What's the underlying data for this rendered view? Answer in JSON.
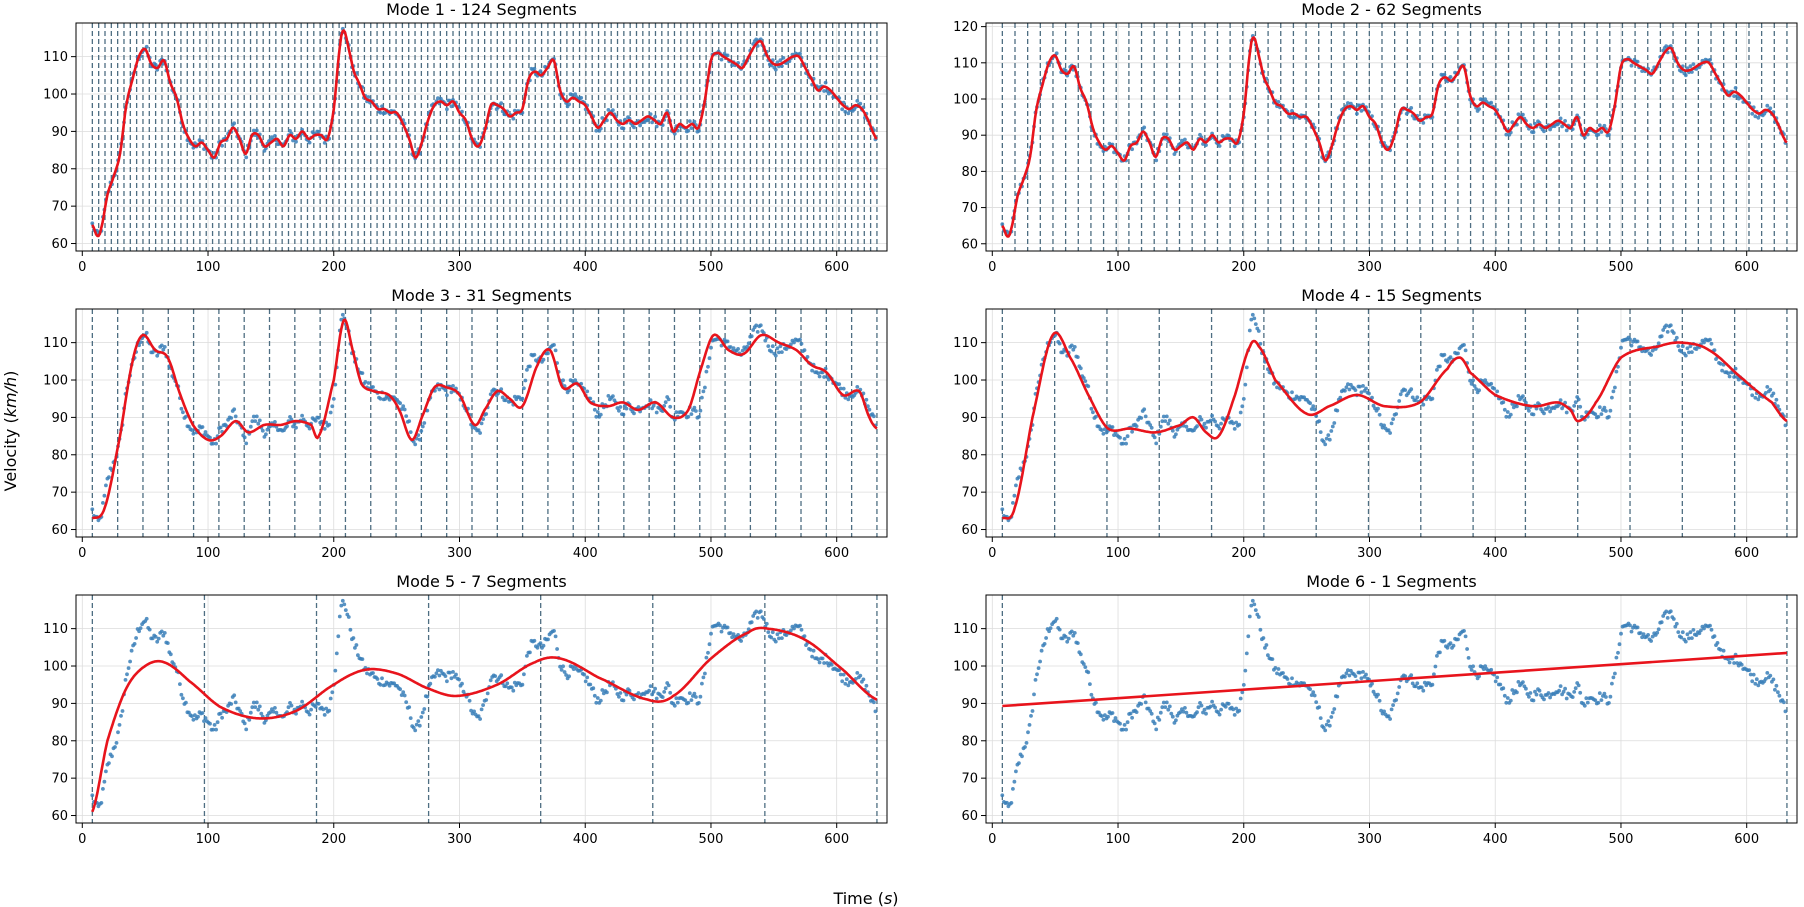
{
  "figure": {
    "xlabel_text": "Time (",
    "xlabel_unit": "s",
    "xlabel_close": ")",
    "ylabel_text": "Velocity (",
    "ylabel_unit": "km/h",
    "ylabel_close": ")"
  },
  "colors": {
    "scatter": "#3a7fb8",
    "fit": "#e8141c",
    "boundary": "#4e6e82",
    "grid": "#dcdcdc"
  },
  "chart_data": [
    {
      "type": "line",
      "title": "Mode 1 - 124 Segments",
      "segments": 124,
      "xlim": [
        -5,
        640
      ],
      "ylim": [
        58,
        119
      ],
      "xticks": [
        0,
        100,
        200,
        300,
        400,
        500,
        600
      ],
      "yticks": [
        60,
        70,
        80,
        90,
        100,
        110
      ],
      "fit": "full",
      "fit_points": []
    },
    {
      "type": "line",
      "title": "Mode 2 - 62 Segments",
      "segments": 62,
      "xlim": [
        -5,
        640
      ],
      "ylim": [
        58,
        121
      ],
      "xticks": [
        0,
        100,
        200,
        300,
        400,
        500,
        600
      ],
      "yticks": [
        60,
        70,
        80,
        90,
        100,
        110,
        120
      ],
      "fit": "full",
      "fit_points": []
    },
    {
      "type": "line",
      "title": "Mode 3 - 31 Segments",
      "segments": 31,
      "xlim": [
        -5,
        640
      ],
      "ylim": [
        58,
        119
      ],
      "xticks": [
        0,
        100,
        200,
        300,
        400,
        500,
        600
      ],
      "yticks": [
        60,
        70,
        80,
        90,
        100,
        110
      ],
      "fit": "smooth",
      "fit_points": [
        [
          8,
          63
        ],
        [
          18,
          66
        ],
        [
          30,
          85
        ],
        [
          40,
          105
        ],
        [
          48,
          112
        ],
        [
          58,
          108
        ],
        [
          68,
          106
        ],
        [
          78,
          96
        ],
        [
          88,
          88
        ],
        [
          100,
          84
        ],
        [
          110,
          85
        ],
        [
          122,
          89
        ],
        [
          132,
          86
        ],
        [
          145,
          88
        ],
        [
          158,
          88
        ],
        [
          170,
          89
        ],
        [
          182,
          88
        ],
        [
          188,
          85
        ],
        [
          200,
          100
        ],
        [
          208,
          116
        ],
        [
          215,
          108
        ],
        [
          222,
          99
        ],
        [
          232,
          97
        ],
        [
          244,
          96
        ],
        [
          252,
          92
        ],
        [
          262,
          84
        ],
        [
          270,
          90
        ],
        [
          280,
          98
        ],
        [
          290,
          98
        ],
        [
          300,
          96
        ],
        [
          312,
          88
        ],
        [
          320,
          92
        ],
        [
          330,
          97
        ],
        [
          340,
          95
        ],
        [
          350,
          93
        ],
        [
          362,
          104
        ],
        [
          372,
          108
        ],
        [
          382,
          98
        ],
        [
          394,
          99
        ],
        [
          404,
          94
        ],
        [
          418,
          93
        ],
        [
          430,
          94
        ],
        [
          442,
          92
        ],
        [
          456,
          94
        ],
        [
          470,
          90
        ],
        [
          482,
          92
        ],
        [
          492,
          103
        ],
        [
          502,
          112
        ],
        [
          514,
          108
        ],
        [
          526,
          107
        ],
        [
          540,
          112
        ],
        [
          554,
          110
        ],
        [
          568,
          108
        ],
        [
          580,
          104
        ],
        [
          592,
          102
        ],
        [
          605,
          96
        ],
        [
          618,
          97
        ],
        [
          626,
          90
        ],
        [
          632,
          87
        ]
      ]
    },
    {
      "type": "line",
      "title": "Mode 4 - 15 Segments",
      "segments": 15,
      "xlim": [
        -5,
        640
      ],
      "ylim": [
        58,
        119
      ],
      "xticks": [
        0,
        100,
        200,
        300,
        400,
        500,
        600
      ],
      "yticks": [
        60,
        70,
        80,
        90,
        100,
        110
      ],
      "fit": "smooth",
      "fit_points": [
        [
          8,
          63
        ],
        [
          18,
          66
        ],
        [
          32,
          90
        ],
        [
          48,
          112
        ],
        [
          62,
          106
        ],
        [
          78,
          95
        ],
        [
          92,
          87
        ],
        [
          110,
          87
        ],
        [
          130,
          86
        ],
        [
          150,
          88
        ],
        [
          160,
          90
        ],
        [
          170,
          86
        ],
        [
          180,
          85
        ],
        [
          192,
          95
        ],
        [
          205,
          109
        ],
        [
          212,
          109
        ],
        [
          225,
          100
        ],
        [
          250,
          91
        ],
        [
          268,
          93
        ],
        [
          290,
          96
        ],
        [
          312,
          93
        ],
        [
          340,
          94
        ],
        [
          362,
          103
        ],
        [
          372,
          106
        ],
        [
          380,
          102
        ],
        [
          400,
          96
        ],
        [
          430,
          93
        ],
        [
          450,
          94
        ],
        [
          460,
          92
        ],
        [
          466,
          89
        ],
        [
          480,
          94
        ],
        [
          500,
          106
        ],
        [
          530,
          109
        ],
        [
          548,
          110
        ],
        [
          570,
          108
        ],
        [
          598,
          100
        ],
        [
          620,
          94
        ],
        [
          632,
          89
        ]
      ]
    },
    {
      "type": "line",
      "title": "Mode 5 - 7 Segments",
      "segments": 7,
      "xlim": [
        -5,
        640
      ],
      "ylim": [
        58,
        119
      ],
      "xticks": [
        0,
        100,
        200,
        300,
        400,
        500,
        600
      ],
      "yticks": [
        60,
        70,
        80,
        90,
        100,
        110
      ],
      "fit": "smooth",
      "fit_points": [
        [
          8,
          61
        ],
        [
          20,
          80
        ],
        [
          35,
          94
        ],
        [
          50,
          100
        ],
        [
          65,
          101
        ],
        [
          85,
          96
        ],
        [
          110,
          89
        ],
        [
          140,
          86
        ],
        [
          170,
          88
        ],
        [
          200,
          95
        ],
        [
          225,
          99
        ],
        [
          250,
          98
        ],
        [
          275,
          94
        ],
        [
          298,
          92
        ],
        [
          330,
          95
        ],
        [
          360,
          101
        ],
        [
          380,
          102
        ],
        [
          410,
          97
        ],
        [
          450,
          91
        ],
        [
          470,
          92
        ],
        [
          500,
          102
        ],
        [
          530,
          109
        ],
        [
          545,
          110
        ],
        [
          575,
          107
        ],
        [
          605,
          99
        ],
        [
          632,
          91
        ]
      ]
    },
    {
      "type": "line",
      "title": "Mode 6 - 1 Segments",
      "segments": 1,
      "xlim": [
        -5,
        640
      ],
      "ylim": [
        58,
        119
      ],
      "xticks": [
        0,
        100,
        200,
        300,
        400,
        500,
        600
      ],
      "yticks": [
        60,
        70,
        80,
        90,
        100,
        110
      ],
      "fit": "linear",
      "fit_points": [
        [
          8,
          89.3
        ],
        [
          632,
          103.5
        ]
      ]
    }
  ],
  "observed_speed_profile": {
    "x_range": [
      8,
      632
    ],
    "control_points": [
      [
        8,
        65
      ],
      [
        12,
        62
      ],
      [
        15,
        64
      ],
      [
        20,
        73
      ],
      [
        25,
        78
      ],
      [
        30,
        84
      ],
      [
        35,
        97
      ],
      [
        40,
        104
      ],
      [
        45,
        110
      ],
      [
        50,
        112
      ],
      [
        55,
        108
      ],
      [
        60,
        107
      ],
      [
        65,
        109
      ],
      [
        70,
        103
      ],
      [
        75,
        99
      ],
      [
        80,
        92
      ],
      [
        85,
        88
      ],
      [
        90,
        86
      ],
      [
        95,
        87
      ],
      [
        100,
        85
      ],
      [
        105,
        83
      ],
      [
        110,
        87
      ],
      [
        115,
        88
      ],
      [
        120,
        91
      ],
      [
        125,
        88
      ],
      [
        130,
        84
      ],
      [
        135,
        89
      ],
      [
        140,
        89
      ],
      [
        145,
        86
      ],
      [
        150,
        87
      ],
      [
        155,
        88
      ],
      [
        160,
        86
      ],
      [
        165,
        89
      ],
      [
        170,
        88
      ],
      [
        175,
        90
      ],
      [
        180,
        88
      ],
      [
        185,
        89
      ],
      [
        190,
        89
      ],
      [
        195,
        88
      ],
      [
        200,
        96
      ],
      [
        205,
        113
      ],
      [
        208,
        117
      ],
      [
        212,
        112
      ],
      [
        216,
        106
      ],
      [
        220,
        103
      ],
      [
        225,
        99
      ],
      [
        230,
        98
      ],
      [
        235,
        96
      ],
      [
        240,
        96
      ],
      [
        245,
        95
      ],
      [
        250,
        95
      ],
      [
        255,
        92
      ],
      [
        260,
        88
      ],
      [
        265,
        83
      ],
      [
        270,
        87
      ],
      [
        275,
        93
      ],
      [
        280,
        97
      ],
      [
        285,
        98
      ],
      [
        290,
        97
      ],
      [
        295,
        98
      ],
      [
        300,
        95
      ],
      [
        305,
        93
      ],
      [
        310,
        88
      ],
      [
        315,
        86
      ],
      [
        320,
        90
      ],
      [
        325,
        97
      ],
      [
        330,
        97
      ],
      [
        335,
        96
      ],
      [
        340,
        94
      ],
      [
        345,
        95
      ],
      [
        350,
        96
      ],
      [
        355,
        104
      ],
      [
        360,
        106
      ],
      [
        365,
        105
      ],
      [
        370,
        107
      ],
      [
        375,
        109
      ],
      [
        380,
        101
      ],
      [
        385,
        98
      ],
      [
        390,
        99
      ],
      [
        395,
        98
      ],
      [
        400,
        97
      ],
      [
        405,
        94
      ],
      [
        410,
        91
      ],
      [
        415,
        93
      ],
      [
        420,
        95
      ],
      [
        425,
        93
      ],
      [
        430,
        92
      ],
      [
        435,
        93
      ],
      [
        440,
        92
      ],
      [
        445,
        93
      ],
      [
        450,
        94
      ],
      [
        455,
        93
      ],
      [
        460,
        92
      ],
      [
        465,
        95
      ],
      [
        470,
        90
      ],
      [
        475,
        92
      ],
      [
        480,
        91
      ],
      [
        485,
        92
      ],
      [
        490,
        91
      ],
      [
        495,
        98
      ],
      [
        500,
        109
      ],
      [
        505,
        111
      ],
      [
        510,
        110
      ],
      [
        515,
        109
      ],
      [
        520,
        108
      ],
      [
        525,
        107
      ],
      [
        530,
        110
      ],
      [
        535,
        113
      ],
      [
        540,
        114
      ],
      [
        545,
        110
      ],
      [
        550,
        108
      ],
      [
        555,
        108
      ],
      [
        560,
        109
      ],
      [
        565,
        110
      ],
      [
        570,
        110
      ],
      [
        575,
        107
      ],
      [
        580,
        104
      ],
      [
        585,
        101
      ],
      [
        590,
        102
      ],
      [
        595,
        101
      ],
      [
        600,
        99
      ],
      [
        605,
        97
      ],
      [
        610,
        96
      ],
      [
        615,
        97
      ],
      [
        620,
        96
      ],
      [
        625,
        93
      ],
      [
        630,
        89
      ],
      [
        632,
        88
      ]
    ]
  }
}
